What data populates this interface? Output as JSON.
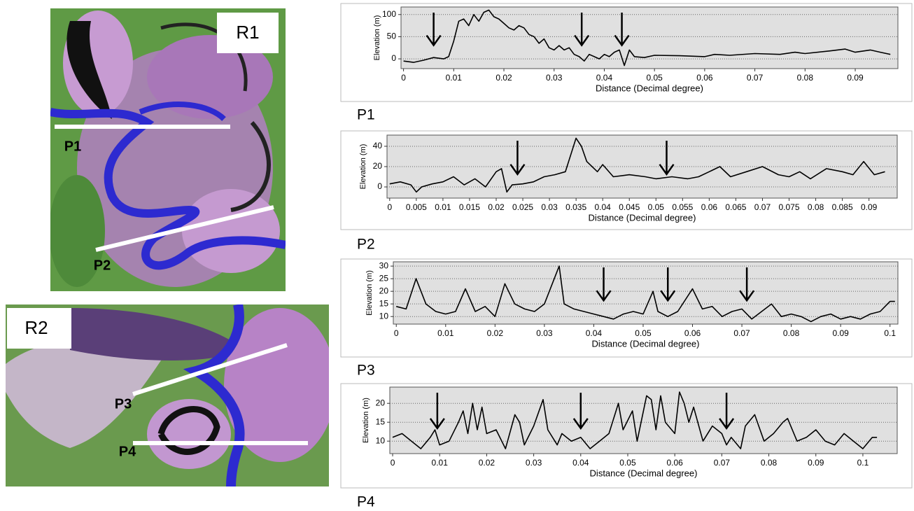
{
  "maps": [
    {
      "label": "R1",
      "profiles": [
        "P1",
        "P2"
      ]
    },
    {
      "label": "R2",
      "profiles": [
        "P3",
        "P4"
      ]
    }
  ],
  "chart_data": [
    {
      "type": "line",
      "title": "P1",
      "x_label": "Distance (Decimal degree)",
      "y_label": "Elevation (m)",
      "color": "#000000",
      "grid": true,
      "x": [
        0,
        0.002,
        0.004,
        0.006,
        0.008,
        0.009,
        0.01,
        0.011,
        0.012,
        0.013,
        0.014,
        0.015,
        0.016,
        0.017,
        0.018,
        0.019,
        0.02,
        0.021,
        0.022,
        0.023,
        0.024,
        0.025,
        0.026,
        0.027,
        0.028,
        0.029,
        0.03,
        0.031,
        0.032,
        0.033,
        0.034,
        0.035,
        0.036,
        0.037,
        0.038,
        0.039,
        0.04,
        0.041,
        0.042,
        0.043,
        0.044,
        0.045,
        0.046,
        0.048,
        0.05,
        0.055,
        0.06,
        0.062,
        0.065,
        0.07,
        0.075,
        0.078,
        0.08,
        0.085,
        0.088,
        0.09,
        0.093,
        0.095,
        0.097
      ],
      "values": [
        -5,
        -8,
        -3,
        3,
        0,
        5,
        40,
        85,
        90,
        75,
        100,
        85,
        105,
        110,
        95,
        90,
        80,
        70,
        65,
        75,
        70,
        55,
        50,
        35,
        45,
        25,
        20,
        30,
        20,
        25,
        10,
        5,
        -5,
        10,
        5,
        0,
        10,
        5,
        15,
        20,
        -15,
        20,
        5,
        3,
        8,
        7,
        5,
        10,
        8,
        12,
        10,
        15,
        12,
        18,
        22,
        15,
        20,
        15,
        10
      ],
      "arrows": [
        0.006,
        0.0355,
        0.0435
      ],
      "xlim": [
        -0.0005,
        0.0985
      ],
      "ylim": [
        -22,
        117
      ],
      "xticks": [
        0,
        0.01,
        0.02,
        0.03,
        0.04,
        0.05,
        0.06,
        0.07,
        0.08,
        0.09
      ],
      "yticks": [
        0,
        50,
        100
      ]
    },
    {
      "type": "line",
      "title": "P2",
      "x_label": "Distance (Decimal degree)",
      "y_label": "Elevation (m)",
      "color": "#000000",
      "grid": true,
      "x": [
        0,
        0.002,
        0.004,
        0.005,
        0.006,
        0.008,
        0.01,
        0.012,
        0.014,
        0.016,
        0.018,
        0.02,
        0.021,
        0.022,
        0.023,
        0.025,
        0.027,
        0.029,
        0.031,
        0.033,
        0.035,
        0.036,
        0.037,
        0.039,
        0.04,
        0.042,
        0.045,
        0.048,
        0.05,
        0.053,
        0.056,
        0.058,
        0.06,
        0.062,
        0.064,
        0.067,
        0.07,
        0.073,
        0.075,
        0.077,
        0.079,
        0.082,
        0.085,
        0.087,
        0.089,
        0.091,
        0.093
      ],
      "values": [
        3,
        5,
        2,
        -5,
        0,
        3,
        5,
        10,
        2,
        8,
        0,
        15,
        18,
        -5,
        2,
        3,
        5,
        10,
        12,
        15,
        48,
        40,
        25,
        15,
        22,
        10,
        12,
        10,
        8,
        10,
        8,
        10,
        15,
        20,
        10,
        15,
        20,
        12,
        10,
        15,
        8,
        18,
        15,
        12,
        25,
        12,
        15
      ],
      "arrows": [
        0.024,
        0.052
      ],
      "xlim": [
        -0.0005,
        0.0953
      ],
      "ylim": [
        -11,
        51
      ],
      "xticks": [
        0,
        0.005,
        0.01,
        0.015,
        0.02,
        0.025,
        0.03,
        0.035,
        0.04,
        0.045,
        0.05,
        0.055,
        0.06,
        0.065,
        0.07,
        0.075,
        0.08,
        0.085,
        0.09
      ],
      "yticks": [
        0,
        20,
        40
      ]
    },
    {
      "type": "line",
      "title": "P3",
      "x_label": "Distance (Decimal degree)",
      "y_label": "Elevation (m)",
      "color": "#000000",
      "grid": true,
      "x": [
        0,
        0.002,
        0.004,
        0.006,
        0.008,
        0.01,
        0.012,
        0.014,
        0.016,
        0.018,
        0.02,
        0.022,
        0.024,
        0.026,
        0.028,
        0.03,
        0.033,
        0.034,
        0.036,
        0.038,
        0.04,
        0.042,
        0.044,
        0.046,
        0.048,
        0.05,
        0.052,
        0.053,
        0.055,
        0.057,
        0.06,
        0.062,
        0.064,
        0.066,
        0.068,
        0.07,
        0.072,
        0.074,
        0.076,
        0.078,
        0.08,
        0.082,
        0.084,
        0.086,
        0.088,
        0.09,
        0.092,
        0.094,
        0.096,
        0.098,
        0.1,
        0.101
      ],
      "values": [
        14,
        13,
        25,
        15,
        12,
        11,
        12,
        21,
        12,
        14,
        10,
        23,
        15,
        13,
        12,
        15,
        30,
        15,
        13,
        12,
        11,
        10,
        9,
        11,
        12,
        11,
        20,
        12,
        10,
        12,
        21,
        13,
        14,
        10,
        12,
        13,
        9,
        12,
        15,
        10,
        11,
        10,
        8,
        10,
        11,
        9,
        10,
        9,
        11,
        12,
        16,
        16
      ],
      "arrows": [
        0.042,
        0.055,
        0.071
      ],
      "xlim": [
        -0.0006,
        0.1016
      ],
      "ylim": [
        7,
        31.7
      ],
      "xticks": [
        0,
        0.01,
        0.02,
        0.03,
        0.04,
        0.05,
        0.06,
        0.07,
        0.08,
        0.09,
        0.1
      ],
      "yticks": [
        10,
        15,
        20,
        25,
        30
      ]
    },
    {
      "type": "line",
      "title": "P4",
      "x_label": "Distance (Decimal degree)",
      "y_label": "Elevation (m)",
      "color": "#000000",
      "grid": true,
      "x": [
        0,
        0.002,
        0.004,
        0.006,
        0.008,
        0.009,
        0.01,
        0.012,
        0.014,
        0.015,
        0.016,
        0.017,
        0.018,
        0.019,
        0.02,
        0.022,
        0.024,
        0.026,
        0.027,
        0.028,
        0.03,
        0.032,
        0.033,
        0.035,
        0.036,
        0.038,
        0.04,
        0.042,
        0.044,
        0.046,
        0.048,
        0.049,
        0.051,
        0.052,
        0.054,
        0.055,
        0.056,
        0.057,
        0.058,
        0.06,
        0.061,
        0.062,
        0.063,
        0.064,
        0.066,
        0.068,
        0.07,
        0.071,
        0.072,
        0.074,
        0.075,
        0.077,
        0.079,
        0.081,
        0.083,
        0.084,
        0.086,
        0.088,
        0.09,
        0.092,
        0.094,
        0.096,
        0.098,
        0.1,
        0.102,
        0.103
      ],
      "values": [
        11,
        12,
        10,
        8,
        11,
        13,
        9,
        10,
        15,
        18,
        12,
        20,
        13,
        19,
        12,
        13,
        8,
        17,
        15,
        9,
        14,
        21,
        13,
        9,
        12,
        10,
        11,
        8,
        10,
        12,
        20,
        13,
        18,
        10,
        22,
        21,
        13,
        22,
        15,
        12,
        23,
        20,
        15,
        19,
        10,
        14,
        12,
        9,
        11,
        8,
        14,
        17,
        10,
        12,
        15,
        16,
        10,
        11,
        13,
        10,
        9,
        12,
        10,
        8,
        11,
        11
      ],
      "arrows": [
        0.0095,
        0.04,
        0.071
      ],
      "xlim": [
        -0.0006,
        0.1073
      ],
      "ylim": [
        6.7,
        24.3
      ],
      "xticks": [
        0,
        0.01,
        0.02,
        0.03,
        0.04,
        0.05,
        0.06,
        0.07,
        0.08,
        0.09,
        0.1
      ],
      "yticks": [
        10,
        15,
        20
      ]
    }
  ]
}
